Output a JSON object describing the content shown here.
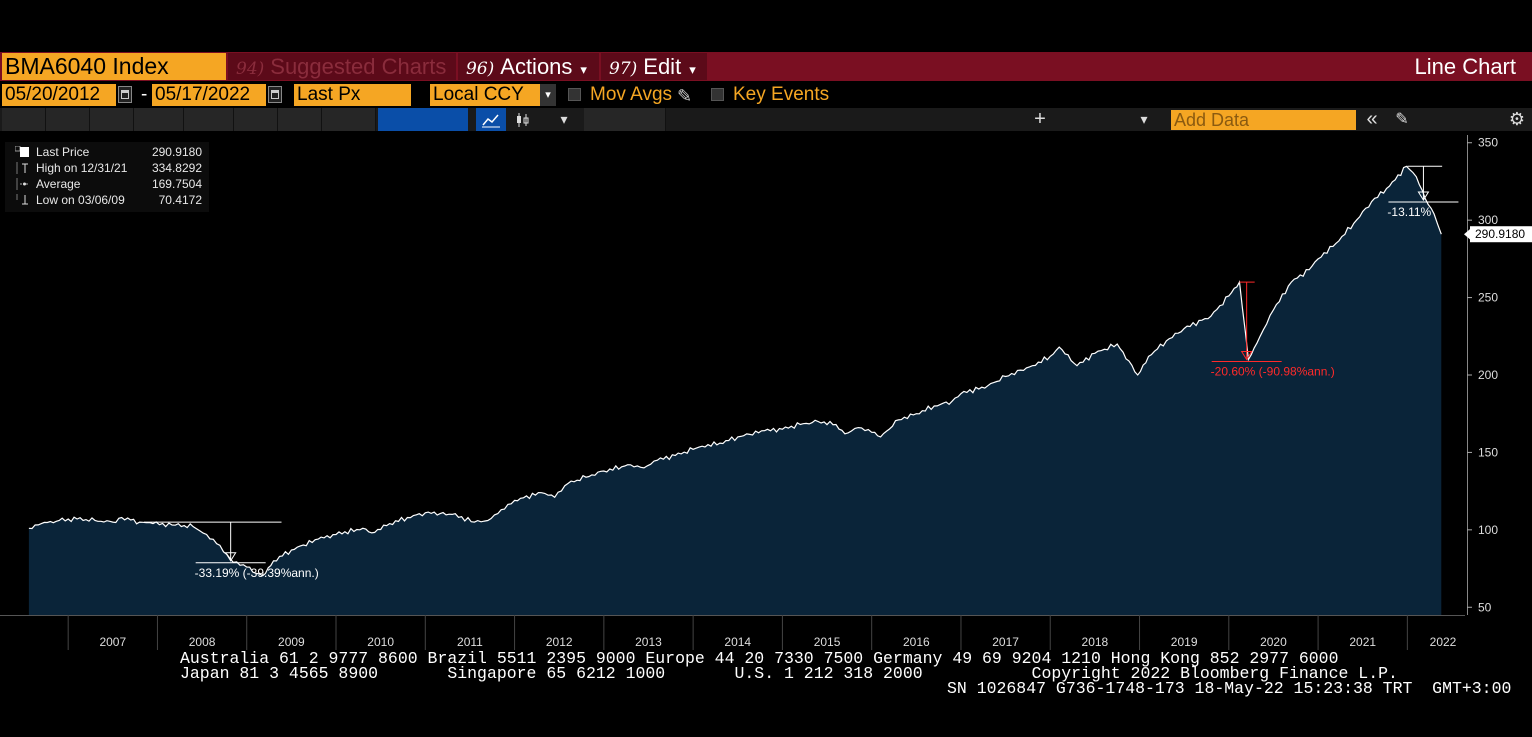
{
  "header": {
    "ticker": "BMA6040 Index",
    "suggested_num": "94)",
    "suggested_label": "Suggested Charts",
    "actions_num": "96)",
    "actions_label": "Actions",
    "edit_num": "97)",
    "edit_label": "Edit",
    "chart_type": "Line Chart",
    "chevron": "▾"
  },
  "controls": {
    "start_date": "05/20/2012",
    "date_separator": "-",
    "end_date": "05/17/2022",
    "field": "Last Px",
    "currency": "Local CCY",
    "mov_avgs": "Mov Avgs",
    "key_events": "Key Events",
    "add_data_placeholder": "Add Data",
    "plus": "+",
    "collapse": "«",
    "settings_icon": "gear-icon"
  },
  "legend": [
    {
      "label": "Last Price",
      "value": "290.9180"
    },
    {
      "label": "High on 12/31/21",
      "value": "334.8292"
    },
    {
      "label": "Average",
      "value": "169.7504"
    },
    {
      "label": "Low on 03/06/09",
      "value": "70.4172"
    }
  ],
  "colors": {
    "area_fill": "#0a2439",
    "line": "#ffffff",
    "accent": "#f5a623",
    "header_bg": "#7a0f22",
    "drawdown_red": "#ff2a2a"
  },
  "chart_data": {
    "type": "area",
    "ylim": [
      45,
      355
    ],
    "yticks": [
      50,
      100,
      150,
      200,
      250,
      300,
      350
    ],
    "xlim": [
      2006.55,
      2022.5
    ],
    "xtick_labels": [
      "2007",
      "2008",
      "2009",
      "2010",
      "2011",
      "2012",
      "2013",
      "2014",
      "2015",
      "2016",
      "2017",
      "2018",
      "2019",
      "2020",
      "2021",
      "2022"
    ],
    "last_value_label": "290.9180",
    "series": [
      {
        "x": [
          2006.56,
          2006.7,
          2006.9,
          2007.1,
          2007.3,
          2007.5,
          2007.6,
          2007.8,
          2007.95,
          2008.2,
          2008.4,
          2008.55,
          2008.7,
          2008.78,
          2008.85,
          2009.0,
          2009.1,
          2009.18,
          2009.3,
          2009.5,
          2009.8,
          2010.0,
          2010.3,
          2010.4,
          2010.6,
          2010.8,
          2011.0,
          2011.3,
          2011.55,
          2011.7,
          2011.85,
          2012.0,
          2012.3,
          2012.45,
          2012.6,
          2012.8,
          2013.0,
          2013.3,
          2013.45,
          2013.6,
          2013.8,
          2014.0,
          2014.1,
          2014.3,
          2014.5,
          2014.8,
          2015.0,
          2015.2,
          2015.4,
          2015.6,
          2015.7,
          2015.85,
          2016.0,
          2016.1,
          2016.3,
          2016.5,
          2016.7,
          2016.9,
          2017.0,
          2017.3,
          2017.5,
          2017.8,
          2018.0,
          2018.1,
          2018.3,
          2018.5,
          2018.75,
          2018.98,
          2019.1,
          2019.3,
          2019.5,
          2019.8,
          2020.0,
          2020.12,
          2020.22,
          2020.35,
          2020.5,
          2020.7,
          2020.9,
          2021.0,
          2021.2,
          2021.4,
          2021.6,
          2021.8,
          2021.99,
          2022.1,
          2022.2,
          2022.3,
          2022.38
        ],
        "y": [
          101,
          104,
          106,
          107,
          106,
          105,
          108,
          105,
          104,
          103,
          102,
          97,
          90,
          84,
          79,
          76,
          72,
          70.4,
          80,
          87,
          94,
          97,
          101,
          98,
          104,
          108,
          111,
          110,
          105,
          106,
          113,
          119,
          124,
          121,
          130,
          134,
          138,
          142,
          140,
          145,
          148,
          152,
          154,
          156,
          160,
          164,
          165,
          168,
          170,
          168,
          162,
          166,
          163,
          160,
          171,
          175,
          180,
          183,
          188,
          193,
          199,
          206,
          212,
          218,
          206,
          214,
          220,
          200,
          212,
          222,
          230,
          238,
          251,
          260,
          210,
          225,
          242,
          260,
          268,
          275,
          285,
          298,
          312,
          322,
          334.8,
          328,
          314,
          304,
          290.918
        ]
      }
    ],
    "annotations": [
      {
        "text": "-33.19% (-39.39%ann.)",
        "color": "#ffffff"
      },
      {
        "text": "-20.60% (-90.98%ann.)",
        "color": "#ff2a2a"
      },
      {
        "text": "-13.11%",
        "color": "#ffffff"
      }
    ]
  },
  "footer": {
    "line1": "Australia 61 2 9777 8600 Brazil 5511 2395 9000 Europe 44 20 7330 7500 Germany 49 69 9204 1210 Hong Kong 852 2977 6000",
    "line2": "Japan 81 3 4565 8900       Singapore 65 6212 1000       U.S. 1 212 318 2000           Copyright 2022 Bloomberg Finance L.P.",
    "line3": "SN 1026847 G736-1748-173 18-May-22 15:23:38 TRT  GMT+3:00"
  }
}
